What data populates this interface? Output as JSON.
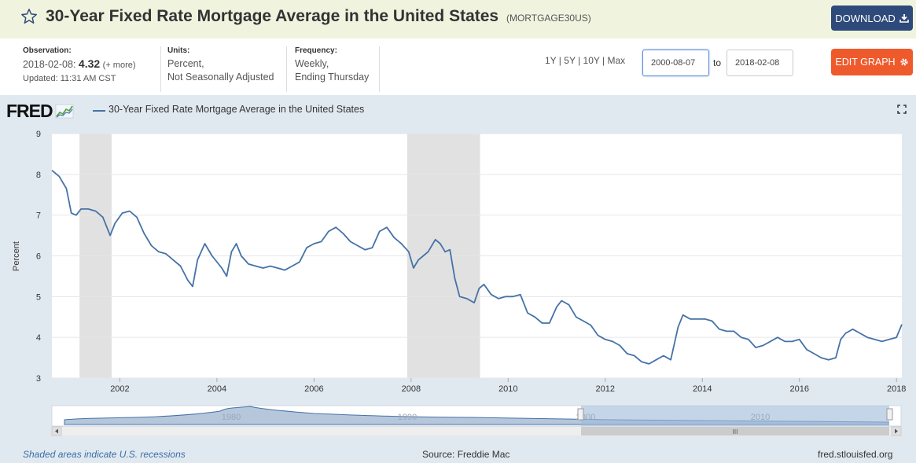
{
  "header": {
    "title": "30-Year Fixed Rate Mortgage Average in the United States",
    "series_id": "(MORTGAGE30US)",
    "download_label": "DOWNLOAD",
    "star_icon": "star-outline-icon",
    "download_icon": "download-icon"
  },
  "observation": {
    "label": "Observation:",
    "date": "2018-02-08:",
    "value": "4.32",
    "more": "(+ more)",
    "updated": "Updated: 11:31 AM CST"
  },
  "units": {
    "label": "Units:",
    "line1": "Percent,",
    "line2": "Not Seasonally Adjusted"
  },
  "frequency": {
    "label": "Frequency:",
    "line1": "Weekly,",
    "line2": "Ending Thursday"
  },
  "range": {
    "links": [
      "1Y",
      "5Y",
      "10Y",
      "Max"
    ],
    "from": "2000-08-07",
    "to_label": "to",
    "to": "2018-02-08",
    "edit_label": "EDIT GRAPH",
    "edit_icon": "gear-icon"
  },
  "graph": {
    "logo": "FRED",
    "legend": "30-Year Fixed Rate Mortgage Average in the United States",
    "expand_icon": "expand-icon",
    "series_color": "#4572a7",
    "recession_color": "#e1e1e1",
    "navigator_labels": [
      "1980",
      "1990",
      "2000",
      "2010"
    ]
  },
  "footer": {
    "note": "Shaded areas indicate U.S. recessions",
    "source": "Source: Freddie Mac",
    "site": "fred.stlouisfed.org"
  },
  "chart_data": {
    "type": "line",
    "title": "",
    "ylabel": "Percent",
    "xlabel": "",
    "ylim": [
      3,
      9
    ],
    "xlim": [
      2000.6,
      2018.11
    ],
    "yticks": [
      3,
      4,
      5,
      6,
      7,
      8,
      9
    ],
    "xticks": [
      "2002",
      "2004",
      "2006",
      "2008",
      "2010",
      "2012",
      "2014",
      "2016",
      "2018"
    ],
    "grid": true,
    "recessions": [
      [
        2001.17,
        2001.83
      ],
      [
        2007.92,
        2009.42
      ]
    ],
    "series": [
      {
        "name": "30-Year Fixed Rate Mortgage Average in the United States",
        "x": [
          2000.6,
          2000.75,
          2000.9,
          2001.0,
          2001.1,
          2001.2,
          2001.35,
          2001.5,
          2001.65,
          2001.8,
          2001.9,
          2002.05,
          2002.2,
          2002.35,
          2002.5,
          2002.65,
          2002.8,
          2002.95,
          2003.1,
          2003.25,
          2003.4,
          2003.5,
          2003.6,
          2003.75,
          2003.9,
          2004.1,
          2004.2,
          2004.3,
          2004.4,
          2004.5,
          2004.65,
          2004.8,
          2004.95,
          2005.1,
          2005.25,
          2005.4,
          2005.55,
          2005.7,
          2005.85,
          2006.0,
          2006.15,
          2006.3,
          2006.45,
          2006.6,
          2006.75,
          2006.9,
          2007.05,
          2007.2,
          2007.35,
          2007.5,
          2007.65,
          2007.8,
          2007.95,
          2008.05,
          2008.15,
          2008.25,
          2008.35,
          2008.5,
          2008.6,
          2008.7,
          2008.8,
          2008.9,
          2009.0,
          2009.15,
          2009.3,
          2009.4,
          2009.5,
          2009.65,
          2009.8,
          2009.95,
          2010.1,
          2010.25,
          2010.4,
          2010.55,
          2010.7,
          2010.85,
          2011.0,
          2011.1,
          2011.25,
          2011.4,
          2011.55,
          2011.7,
          2011.85,
          2012.0,
          2012.15,
          2012.3,
          2012.45,
          2012.6,
          2012.75,
          2012.9,
          2013.05,
          2013.2,
          2013.35,
          2013.5,
          2013.6,
          2013.75,
          2013.9,
          2014.05,
          2014.2,
          2014.35,
          2014.5,
          2014.65,
          2014.8,
          2014.95,
          2015.1,
          2015.25,
          2015.4,
          2015.55,
          2015.7,
          2015.85,
          2016.0,
          2016.15,
          2016.3,
          2016.45,
          2016.6,
          2016.75,
          2016.85,
          2016.95,
          2017.1,
          2017.25,
          2017.4,
          2017.55,
          2017.7,
          2017.85,
          2018.0,
          2018.11
        ],
        "values": [
          8.1,
          7.95,
          7.65,
          7.05,
          7.0,
          7.15,
          7.15,
          7.1,
          6.95,
          6.5,
          6.8,
          7.05,
          7.1,
          6.95,
          6.55,
          6.25,
          6.1,
          6.05,
          5.9,
          5.75,
          5.4,
          5.25,
          5.9,
          6.3,
          6.0,
          5.7,
          5.5,
          6.1,
          6.3,
          6.0,
          5.8,
          5.75,
          5.7,
          5.75,
          5.7,
          5.65,
          5.75,
          5.85,
          6.2,
          6.3,
          6.35,
          6.6,
          6.7,
          6.55,
          6.35,
          6.25,
          6.15,
          6.2,
          6.6,
          6.7,
          6.45,
          6.3,
          6.1,
          5.7,
          5.9,
          6.0,
          6.1,
          6.4,
          6.3,
          6.1,
          6.15,
          5.45,
          5.0,
          4.95,
          4.85,
          5.2,
          5.3,
          5.05,
          4.95,
          5.0,
          5.0,
          5.05,
          4.6,
          4.5,
          4.35,
          4.35,
          4.75,
          4.9,
          4.8,
          4.5,
          4.4,
          4.3,
          4.05,
          3.95,
          3.9,
          3.8,
          3.6,
          3.55,
          3.4,
          3.35,
          3.45,
          3.55,
          3.45,
          4.25,
          4.55,
          4.45,
          4.45,
          4.45,
          4.4,
          4.2,
          4.15,
          4.15,
          4.0,
          3.95,
          3.75,
          3.8,
          3.9,
          4.0,
          3.9,
          3.9,
          3.95,
          3.7,
          3.6,
          3.5,
          3.45,
          3.5,
          3.95,
          4.1,
          4.2,
          4.1,
          4.0,
          3.95,
          3.9,
          3.95,
          4.0,
          4.32
        ]
      }
    ]
  }
}
